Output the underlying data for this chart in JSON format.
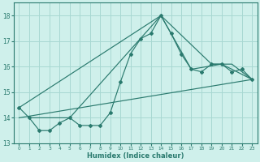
{
  "xlabel": "Humidex (Indice chaleur)",
  "bg_color": "#cff0eb",
  "grid_color": "#a8d8d2",
  "line_color": "#2a7a6e",
  "xlim": [
    -0.5,
    23.5
  ],
  "ylim": [
    13.0,
    18.5
  ],
  "yticks": [
    13,
    14,
    15,
    16,
    17,
    18
  ],
  "xticks": [
    0,
    1,
    2,
    3,
    4,
    5,
    6,
    7,
    8,
    9,
    10,
    11,
    12,
    13,
    14,
    15,
    16,
    17,
    18,
    19,
    20,
    21,
    22,
    23
  ],
  "series_markers": {
    "x": [
      0,
      1,
      2,
      3,
      4,
      5,
      6,
      7,
      8,
      9,
      10,
      11,
      12,
      13,
      14,
      15,
      16,
      17,
      18,
      19,
      20,
      21,
      22,
      23
    ],
    "y": [
      14.4,
      14.0,
      13.5,
      13.5,
      13.8,
      14.0,
      13.7,
      13.7,
      13.7,
      14.2,
      15.4,
      16.5,
      17.1,
      17.3,
      18.0,
      17.3,
      16.5,
      15.9,
      15.8,
      16.1,
      16.1,
      15.8,
      15.9,
      15.5
    ]
  },
  "series_line1": {
    "x": [
      0,
      23
    ],
    "y": [
      14.0,
      15.5
    ]
  },
  "series_line2": {
    "x": [
      0,
      14,
      19,
      21,
      23
    ],
    "y": [
      14.4,
      18.0,
      16.1,
      16.1,
      15.5
    ]
  },
  "series_line3": {
    "x": [
      1,
      5,
      14,
      17,
      20,
      23
    ],
    "y": [
      14.0,
      14.0,
      18.0,
      15.9,
      16.1,
      15.5
    ]
  }
}
